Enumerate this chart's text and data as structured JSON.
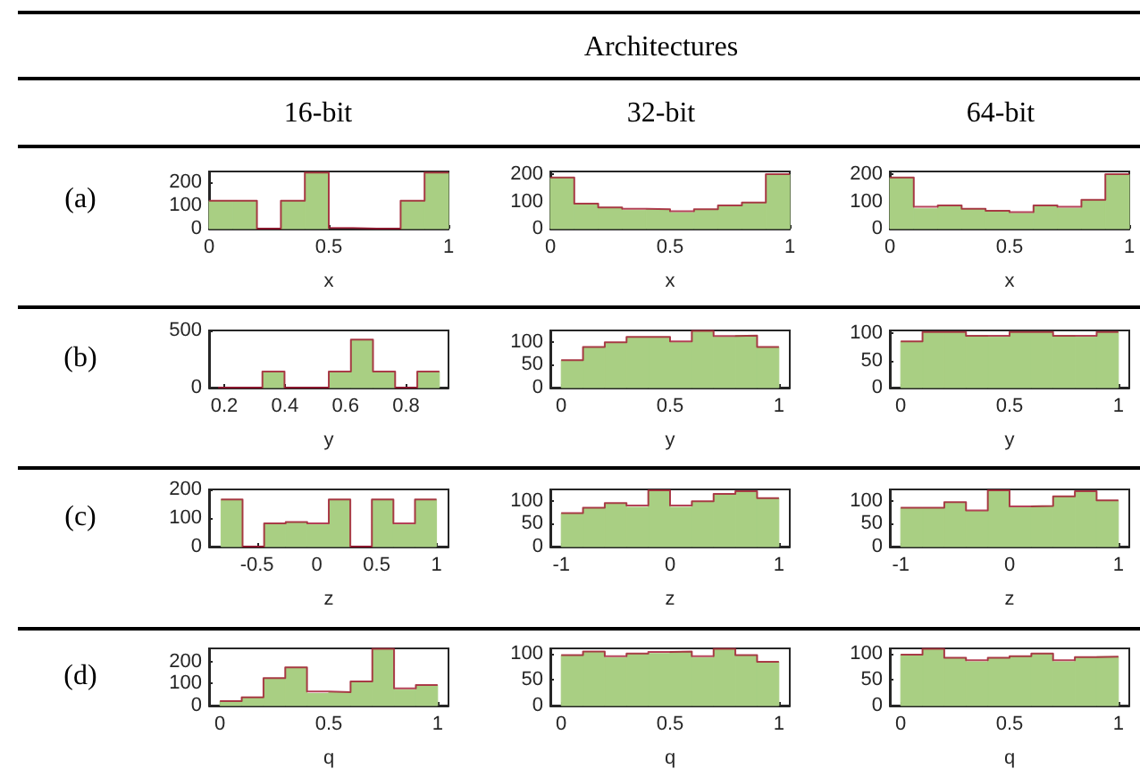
{
  "chart_data": [
    {
      "type": "other",
      "title": "Architectures",
      "annotations": [
        "16-bit",
        "32-bit",
        "64-bit",
        "(a)",
        "(b)",
        "(c)",
        "(d)"
      ]
    },
    {
      "type": "histogram",
      "xlabel": "x",
      "bins": [
        0,
        0.1,
        0.2,
        0.3,
        0.4,
        0.5,
        0.6,
        0.7,
        0.8,
        0.9,
        1
      ],
      "xlim": [
        0,
        1
      ],
      "xticks": [
        0,
        0.5,
        1
      ],
      "ylim": [
        0,
        245
      ],
      "yticks": [
        0,
        100,
        200
      ],
      "series": [
        {
          "type": "step",
          "color": "#a2142f",
          "x": [
            0,
            0.1,
            0.2,
            0.3,
            0.4,
            0.5,
            0.6,
            0.7,
            0.8,
            0.9,
            1
          ],
          "values": [
            120,
            120,
            0,
            120,
            240,
            3,
            0,
            0,
            120,
            240,
            240
          ]
        },
        {
          "color": "#a9cf83",
          "values": [
            120,
            120,
            0,
            120,
            240,
            null,
            0,
            0,
            120,
            240
          ]
        }
      ]
    },
    {
      "type": "histogram",
      "xlabel": "x",
      "bins": [
        0,
        0.1,
        0.2,
        0.3,
        0.4,
        0.5,
        0.6,
        0.7,
        0.8,
        0.9,
        1
      ],
      "xlim": [
        0,
        1
      ],
      "xticks": [
        0,
        0.5,
        1
      ],
      "ylim": [
        0,
        210
      ],
      "yticks": [
        0,
        100,
        200
      ],
      "series": [
        {
          "type": "step",
          "color": "#a2142f",
          "x": [
            0,
            0.1,
            0.2,
            0.3,
            0.4,
            0.5,
            0.6,
            0.7,
            0.8,
            0.9,
            1
          ],
          "values": [
            188,
            92,
            78,
            73,
            71,
            64,
            71,
            85,
            96,
            200,
            200
          ]
        },
        {
          "color": "#a9cf83",
          "values": [
            188,
            92,
            78,
            68,
            71,
            59,
            71,
            85,
            96,
            200
          ]
        }
      ]
    },
    {
      "type": "histogram",
      "xlabel": "x",
      "bins": [
        0,
        0.1,
        0.2,
        0.3,
        0.4,
        0.5,
        0.6,
        0.7,
        0.8,
        0.9,
        1
      ],
      "xlim": [
        0,
        1
      ],
      "xticks": [
        0,
        0.5,
        1
      ],
      "ylim": [
        0,
        210
      ],
      "yticks": [
        0,
        100,
        200
      ],
      "series": [
        {
          "type": "step",
          "color": "#a2142f",
          "x": [
            0,
            0.1,
            0.2,
            0.3,
            0.4,
            0.5,
            0.6,
            0.7,
            0.8,
            0.9,
            1
          ],
          "values": [
            188,
            80,
            85,
            73,
            66,
            61,
            85,
            80,
            106,
            200,
            200
          ]
        },
        {
          "color": "#a9cf83",
          "values": [
            188,
            73,
            85,
            73,
            66,
            56,
            85,
            75,
            106,
            200
          ]
        }
      ]
    },
    {
      "type": "histogram",
      "xlabel": "y",
      "bins": [
        0.18,
        0.253,
        0.326,
        0.399,
        0.472,
        0.545,
        0.618,
        0.691,
        0.764,
        0.837,
        0.91
      ],
      "xlim": [
        0.15,
        0.94
      ],
      "xticks": [
        0.2,
        0.4,
        0.6,
        0.8
      ],
      "ylim": [
        0,
        500
      ],
      "yticks": [
        0,
        500
      ],
      "series": [
        {
          "type": "step",
          "color": "#a2142f",
          "x": [
            0.18,
            0.253,
            0.326,
            0.399,
            0.472,
            0.545,
            0.618,
            0.691,
            0.764,
            0.837,
            0.91
          ],
          "values": [
            0,
            0,
            140,
            0,
            0,
            140,
            420,
            140,
            0,
            140,
            140
          ]
        },
        {
          "color": "#a9cf83",
          "values": [
            0,
            0,
            140,
            0,
            0,
            140,
            420,
            140,
            0,
            140
          ]
        }
      ]
    },
    {
      "type": "histogram",
      "xlabel": "y",
      "bins": [
        0,
        0.1,
        0.2,
        0.3,
        0.4,
        0.5,
        0.6,
        0.7,
        0.8,
        0.9,
        1
      ],
      "xlim": [
        -0.05,
        1.05
      ],
      "xticks": [
        0,
        0.5,
        1
      ],
      "ylim": [
        0,
        125
      ],
      "yticks": [
        0,
        50,
        100
      ],
      "series": [
        {
          "type": "step",
          "color": "#a2142f",
          "x": [
            0,
            0.1,
            0.2,
            0.3,
            0.4,
            0.5,
            0.6,
            0.7,
            0.8,
            0.9,
            1
          ],
          "values": [
            60,
            89,
            99,
            111,
            111,
            101,
            124,
            113,
            114,
            89,
            89
          ]
        },
        {
          "color": "#a9cf83",
          "values": [
            60,
            89,
            99,
            111,
            111,
            99,
            124,
            110,
            114,
            89
          ]
        }
      ]
    },
    {
      "type": "histogram",
      "xlabel": "y",
      "bins": [
        0,
        0.1,
        0.2,
        0.3,
        0.4,
        0.5,
        0.6,
        0.7,
        0.8,
        0.9,
        1
      ],
      "xlim": [
        -0.05,
        1.05
      ],
      "xticks": [
        0,
        0.5,
        1
      ],
      "ylim": [
        0,
        105
      ],
      "yticks": [
        0,
        50,
        100
      ],
      "series": [
        {
          "type": "step",
          "color": "#a2142f",
          "x": [
            0,
            0.1,
            0.2,
            0.3,
            0.4,
            0.5,
            0.6,
            0.7,
            0.8,
            0.9,
            1
          ],
          "values": [
            85,
            102,
            102,
            95,
            95,
            102,
            102,
            95,
            95,
            102,
            102
          ]
        },
        {
          "color": "#a9cf83",
          "values": [
            85,
            102,
            102,
            95,
            93,
            102,
            102,
            95,
            93,
            102
          ]
        }
      ]
    },
    {
      "type": "histogram",
      "xlabel": "z",
      "bins": [
        -0.8,
        -0.62,
        -0.44,
        -0.26,
        -0.08,
        0.1,
        0.28,
        0.46,
        0.64,
        0.82,
        1
      ],
      "xlim": [
        -0.9,
        1.1
      ],
      "xticks": [
        -0.5,
        0,
        0.5,
        1
      ],
      "ylim": [
        0,
        200
      ],
      "yticks": [
        0,
        100,
        200
      ],
      "series": [
        {
          "type": "step",
          "color": "#a2142f",
          "x": [
            -0.8,
            -0.62,
            -0.44,
            -0.26,
            -0.08,
            0.1,
            0.28,
            0.46,
            0.64,
            0.82,
            1
          ],
          "values": [
            165,
            0,
            81,
            86,
            81,
            165,
            0,
            165,
            81,
            165,
            165
          ]
        },
        {
          "color": "#a9cf83",
          "values": [
            165,
            0,
            81,
            86,
            77,
            165,
            0,
            165,
            77,
            165
          ]
        }
      ]
    },
    {
      "type": "histogram",
      "xlabel": "z",
      "bins": [
        -1,
        -0.8,
        -0.6,
        -0.4,
        -0.2,
        0,
        0.2,
        0.4,
        0.6,
        0.8,
        1
      ],
      "xlim": [
        -1.1,
        1.1
      ],
      "xticks": [
        -1,
        0,
        1
      ],
      "ylim": [
        0,
        125
      ],
      "yticks": [
        0,
        50,
        100
      ],
      "series": [
        {
          "type": "step",
          "color": "#a2142f",
          "x": [
            -1,
            -0.8,
            -0.6,
            -0.4,
            -0.2,
            0,
            0.2,
            0.4,
            0.6,
            0.8,
            1
          ],
          "values": [
            73,
            85,
            95,
            90,
            123,
            90,
            99,
            115,
            121,
            106,
            106
          ]
        },
        {
          "color": "#a9cf83",
          "values": [
            73,
            85,
            95,
            86,
            123,
            86,
            99,
            115,
            121,
            106
          ]
        }
      ]
    },
    {
      "type": "histogram",
      "xlabel": "z",
      "bins": [
        -1,
        -0.8,
        -0.6,
        -0.4,
        -0.2,
        0,
        0.2,
        0.4,
        0.6,
        0.8,
        1
      ],
      "xlim": [
        -1.1,
        1.1
      ],
      "xticks": [
        -1,
        0,
        1
      ],
      "ylim": [
        0,
        125
      ],
      "yticks": [
        0,
        50,
        100
      ],
      "series": [
        {
          "type": "step",
          "color": "#a2142f",
          "x": [
            -1,
            -0.8,
            -0.6,
            -0.4,
            -0.2,
            0,
            0.2,
            0.4,
            0.6,
            0.8,
            1
          ],
          "values": [
            85,
            85,
            97,
            79,
            123,
            88,
            89,
            110,
            121,
            101,
            101
          ]
        },
        {
          "color": "#a9cf83",
          "values": [
            85,
            85,
            97,
            77,
            123,
            85,
            89,
            110,
            121,
            101
          ]
        }
      ]
    },
    {
      "type": "histogram",
      "xlabel": "q",
      "bins": [
        0,
        0.1,
        0.2,
        0.3,
        0.4,
        0.5,
        0.6,
        0.7,
        0.8,
        0.9,
        1
      ],
      "xlim": [
        -0.05,
        1.05
      ],
      "xticks": [
        0,
        0.5,
        1
      ],
      "ylim": [
        0,
        260
      ],
      "yticks": [
        0,
        100,
        200
      ],
      "series": [
        {
          "type": "step",
          "color": "#a2142f",
          "x": [
            0,
            0.1,
            0.2,
            0.3,
            0.4,
            0.5,
            0.6,
            0.7,
            0.8,
            0.9,
            1
          ],
          "values": [
            20,
            38,
            125,
            174,
            64,
            61,
            110,
            258,
            78,
            93,
            93
          ]
        },
        {
          "color": "#a9cf83",
          "values": [
            20,
            38,
            125,
            174,
            55,
            61,
            110,
            258,
            72,
            93
          ]
        }
      ]
    },
    {
      "type": "histogram",
      "xlabel": "q",
      "bins": [
        0,
        0.1,
        0.2,
        0.3,
        0.4,
        0.5,
        0.6,
        0.7,
        0.8,
        0.9,
        1
      ],
      "xlim": [
        -0.05,
        1.05
      ],
      "xticks": [
        0,
        0.5,
        1
      ],
      "ylim": [
        0,
        111
      ],
      "yticks": [
        0,
        50,
        100
      ],
      "series": [
        {
          "type": "step",
          "color": "#a2142f",
          "x": [
            0,
            0.1,
            0.2,
            0.3,
            0.4,
            0.5,
            0.6,
            0.7,
            0.8,
            0.9,
            1
          ],
          "values": [
            98,
            105,
            96,
            101,
            104,
            105,
            96,
            110,
            98,
            85,
            85
          ]
        },
        {
          "color": "#a9cf83",
          "values": [
            98,
            105,
            93,
            101,
            101,
            105,
            93,
            110,
            98,
            85
          ]
        }
      ]
    },
    {
      "type": "histogram",
      "xlabel": "q",
      "bins": [
        0,
        0.1,
        0.2,
        0.3,
        0.4,
        0.5,
        0.6,
        0.7,
        0.8,
        0.9,
        1
      ],
      "xlim": [
        -0.05,
        1.05
      ],
      "xticks": [
        0,
        0.5,
        1
      ],
      "ylim": [
        0,
        111
      ],
      "yticks": [
        0,
        50,
        100
      ],
      "series": [
        {
          "type": "step",
          "color": "#a2142f",
          "x": [
            0,
            0.1,
            0.2,
            0.3,
            0.4,
            0.5,
            0.6,
            0.7,
            0.8,
            0.9,
            1
          ],
          "values": [
            99,
            110,
            93,
            88,
            93,
            96,
            101,
            88,
            94,
            95,
            95
          ]
        },
        {
          "color": "#a9cf83",
          "values": [
            99,
            110,
            93,
            85,
            93,
            96,
            101,
            85,
            94,
            95
          ]
        }
      ]
    }
  ]
}
